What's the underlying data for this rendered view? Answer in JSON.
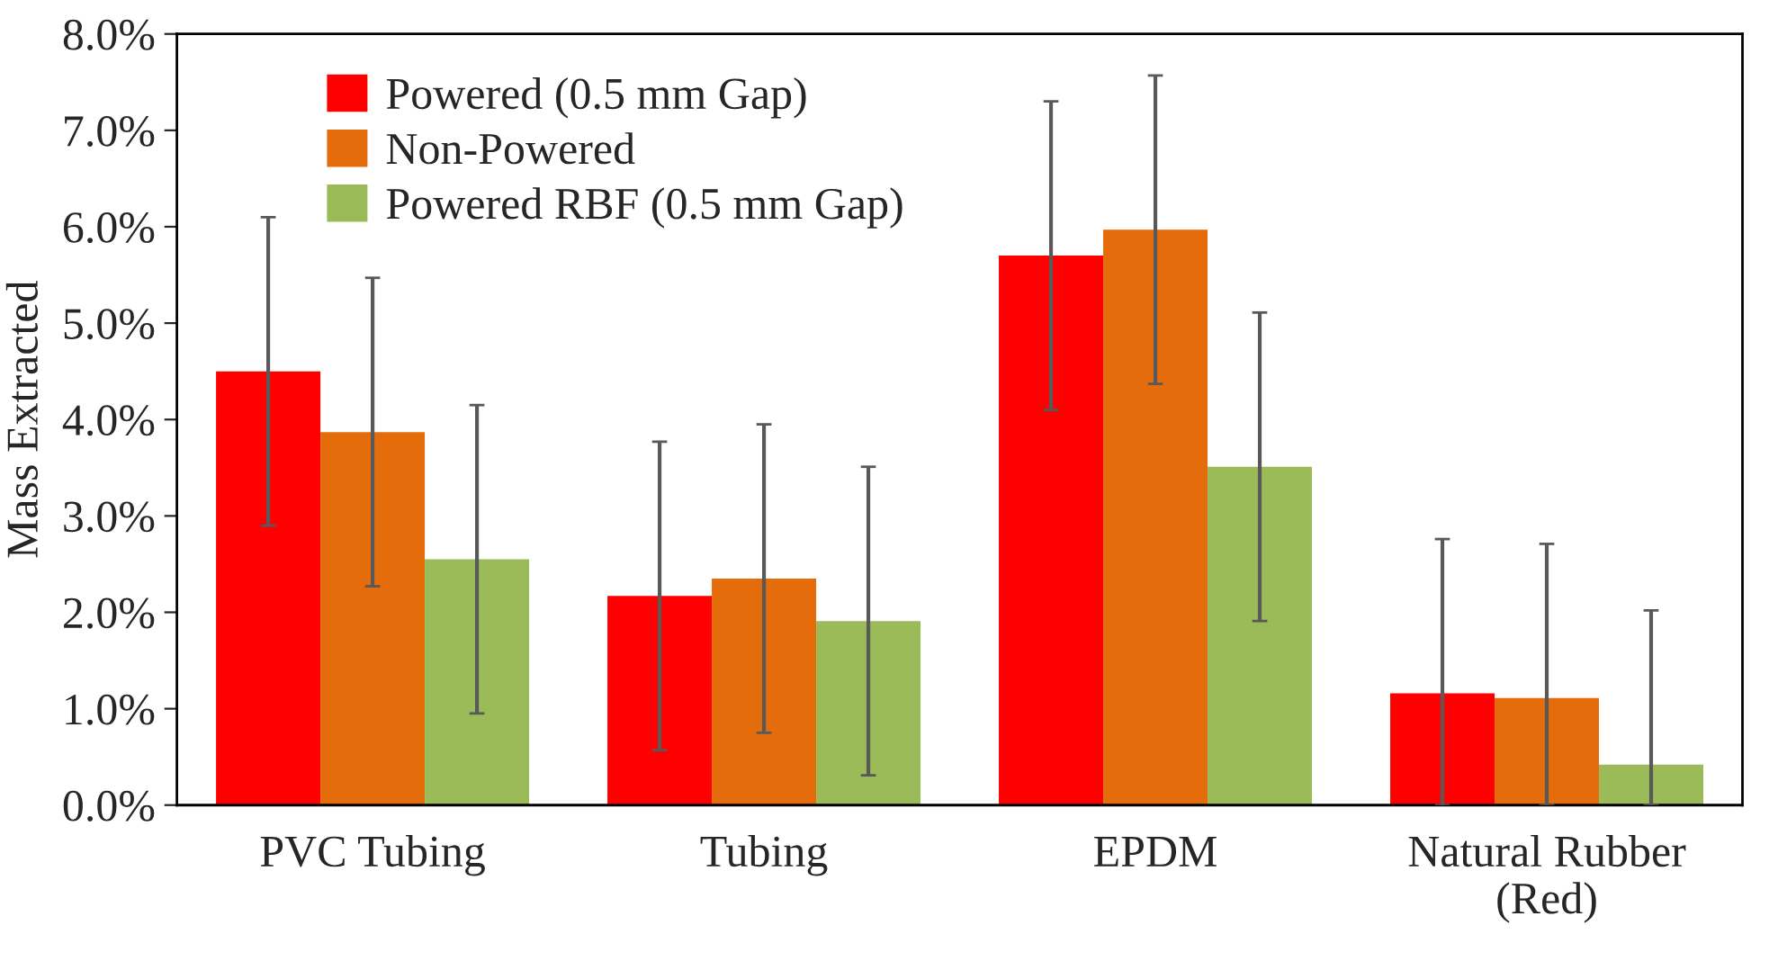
{
  "chart_data": {
    "type": "bar",
    "ylabel": "Mass Extracted",
    "categories": [
      "PVC Tubing",
      "Tubing",
      "EPDM",
      "Natural Rubber\n(Red)"
    ],
    "series": [
      {
        "name": "Powered (0.5 mm Gap)",
        "color": "#ff0000",
        "values": [
          4.5,
          2.17,
          5.7,
          1.16
        ],
        "errors": [
          [
            2.9,
            6.1
          ],
          [
            0.57,
            3.77
          ],
          [
            4.1,
            7.3
          ],
          [
            0,
            2.76
          ]
        ]
      },
      {
        "name": "Non-Powered",
        "color": "#e46c0a",
        "values": [
          3.87,
          2.35,
          5.97,
          1.11
        ],
        "errors": [
          [
            2.27,
            5.47
          ],
          [
            0.75,
            3.95
          ],
          [
            4.37,
            7.57
          ],
          [
            0,
            2.71
          ]
        ]
      },
      {
        "name": "Powered RBF (0.5 mm Gap)",
        "color": "#9bbb59",
        "values": [
          2.55,
          1.91,
          3.51,
          0.42
        ],
        "errors": [
          [
            0.95,
            4.15
          ],
          [
            0.31,
            3.51
          ],
          [
            1.91,
            5.11
          ],
          [
            0,
            2.02
          ]
        ]
      }
    ],
    "ylim": [
      0,
      8
    ],
    "yticks": [
      {
        "value": 0,
        "label": "0.0%"
      },
      {
        "value": 1,
        "label": "1.0%"
      },
      {
        "value": 2,
        "label": "2.0%"
      },
      {
        "value": 3,
        "label": "3.0%"
      },
      {
        "value": 4,
        "label": "4.0%"
      },
      {
        "value": 5,
        "label": "5.0%"
      },
      {
        "value": 6,
        "label": "6.0%"
      },
      {
        "value": 7,
        "label": "7.0%"
      },
      {
        "value": 8,
        "label": "8.0%"
      }
    ],
    "grid": false,
    "legend": "top left"
  }
}
